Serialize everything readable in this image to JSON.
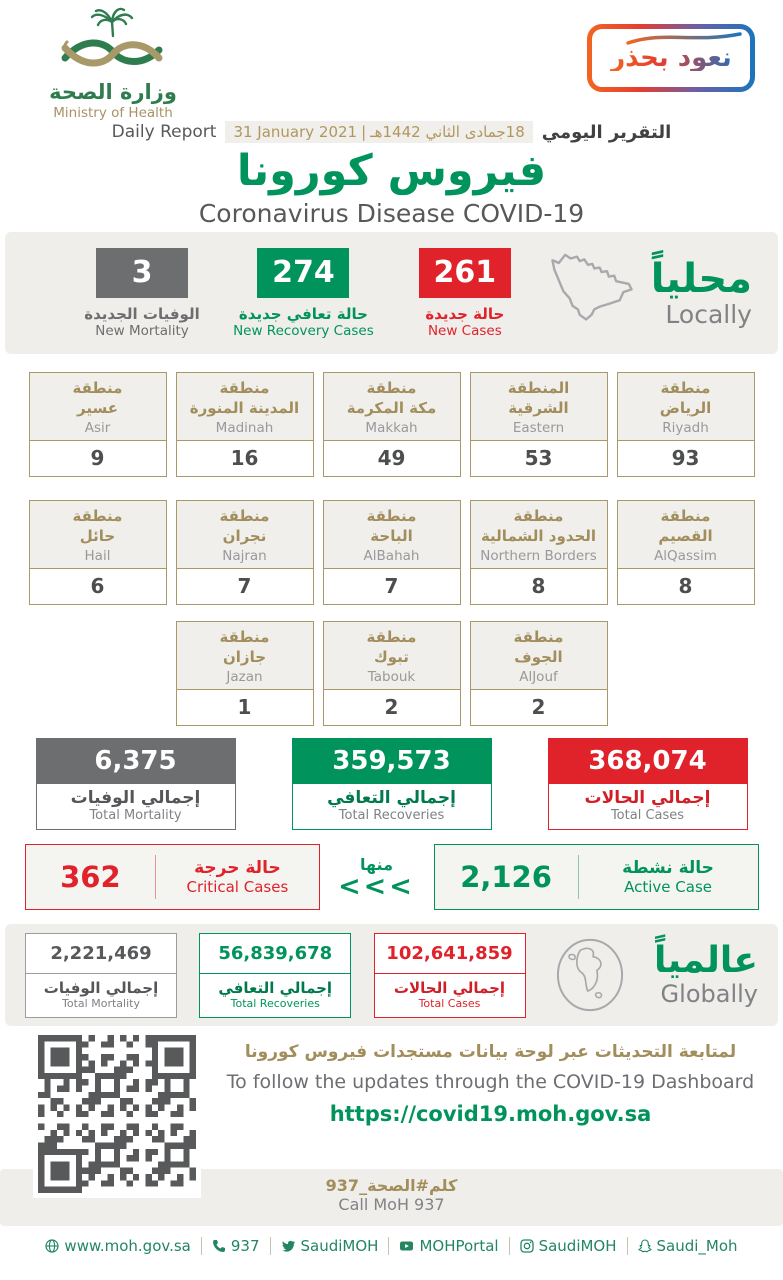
{
  "colors": {
    "green": "#00935c",
    "red": "#e0222a",
    "gray": "#6d6e70",
    "gold": "#a28e5c",
    "band_bg": "#efeeea",
    "footer_link_green": "#238661",
    "badge_gradient_left": "#f26522",
    "badge_gradient_right": "#1b75bb"
  },
  "header": {
    "logo": {
      "arabic": "وزارة الصحة",
      "english": "Ministry of Health"
    },
    "badge": "نعود بحذر",
    "report": {
      "label_en": "Daily Report",
      "date_gregorian": "31 January 2021",
      "date_separator": "|",
      "date_hijri": "18جمادى الثاني 1442هـ",
      "label_ar": "التقرير اليومي"
    },
    "title_ar": "فيروس كورونا",
    "title_en": "Coronavirus Disease COVID-19"
  },
  "locally": {
    "label_ar": "محلياً",
    "label_en": "Locally",
    "stats": [
      {
        "value": "3",
        "label_ar": "الوفيات الجديدة",
        "label_en": "New Mortality"
      },
      {
        "value": "274",
        "label_ar": "حالة تعافي جديدة",
        "label_en": "New Recovery Cases"
      },
      {
        "value": "261",
        "label_ar": "حالة جديدة",
        "label_en": "New Cases"
      }
    ]
  },
  "regions": {
    "rows": [
      [
        {
          "ar1": "منطقة",
          "ar2": "عسير",
          "en": "Asir",
          "value": "9"
        },
        {
          "ar1": "منطقة",
          "ar2": "المدينة المنورة",
          "en": "Madinah",
          "value": "16"
        },
        {
          "ar1": "منطقة",
          "ar2": "مكة المكرمة",
          "en": "Makkah",
          "value": "49"
        },
        {
          "ar1": "المنطقة",
          "ar2": "الشرقية",
          "en": "Eastern",
          "value": "53"
        },
        {
          "ar1": "منطقة",
          "ar2": "الرياض",
          "en": "Riyadh",
          "value": "93"
        }
      ],
      [
        {
          "ar1": "منطقة",
          "ar2": "حائل",
          "en": "Hail",
          "value": "6"
        },
        {
          "ar1": "منطقة",
          "ar2": "نجران",
          "en": "Najran",
          "value": "7"
        },
        {
          "ar1": "منطقة",
          "ar2": "الباحة",
          "en": "AlBahah",
          "value": "7"
        },
        {
          "ar1": "منطقة",
          "ar2": "الحدود الشمالية",
          "en": "Northern Borders",
          "value": "8"
        },
        {
          "ar1": "منطقة",
          "ar2": "القصيم",
          "en": "AlQassim",
          "value": "8"
        }
      ],
      [
        {
          "ar1": "منطقة",
          "ar2": "جازان",
          "en": "Jazan",
          "value": "1"
        },
        {
          "ar1": "منطقة",
          "ar2": "تبوك",
          "en": "Tabouk",
          "value": "2"
        },
        {
          "ar1": "منطقة",
          "ar2": "الجوف",
          "en": "AlJouf",
          "value": "2"
        }
      ]
    ]
  },
  "totals": [
    {
      "value": "6,375",
      "label_ar": "إجمالي الوفيات",
      "label_en": "Total Mortality"
    },
    {
      "value": "359,573",
      "label_ar": "إجمالي التعافي",
      "label_en": "Total Recoveries"
    },
    {
      "value": "368,074",
      "label_ar": "إجمالي الحالات",
      "label_en": "Total Cases"
    }
  ],
  "critical": {
    "value": "362",
    "label_ar": "حالة حرجة",
    "label_en": "Critical Cases"
  },
  "of_which": {
    "label": "منها",
    "arrows": "<<<"
  },
  "active": {
    "value": "2,126",
    "label_ar": "حالة نشطة",
    "label_en": "Active Case"
  },
  "globally": {
    "label_ar": "عالمياً",
    "label_en": "Globally",
    "stats": [
      {
        "value": "2,221,469",
        "label_ar": "إجمالي الوفيات",
        "label_en": "Total Mortality"
      },
      {
        "value": "56,839,678",
        "label_ar": "إجمالي التعافي",
        "label_en": "Total Recoveries"
      },
      {
        "value": "102,641,859",
        "label_ar": "إجمالي الحالات",
        "label_en": "Total Cases"
      }
    ]
  },
  "dashboard": {
    "line_ar": "لمتابعة التحديثات عبر لوحة بيانات مستجدات فيروس كورونا",
    "line_en": "To follow the updates through the COVID-19 Dashboard",
    "url": "https://covid19.moh.gov.sa"
  },
  "call": {
    "ar": "كلم#الصحة_937",
    "en": "Call MoH 937"
  },
  "footer_links": [
    {
      "icon": "globe-icon",
      "label": "www.moh.gov.sa"
    },
    {
      "icon": "phone-icon",
      "label": "937"
    },
    {
      "icon": "twitter-icon",
      "label": "SaudiMOH"
    },
    {
      "icon": "youtube-icon",
      "label": "MOHPortal"
    },
    {
      "icon": "instagram-icon",
      "label": "SaudiMOH"
    },
    {
      "icon": "snapchat-icon",
      "label": "Saudi_Moh"
    }
  ]
}
